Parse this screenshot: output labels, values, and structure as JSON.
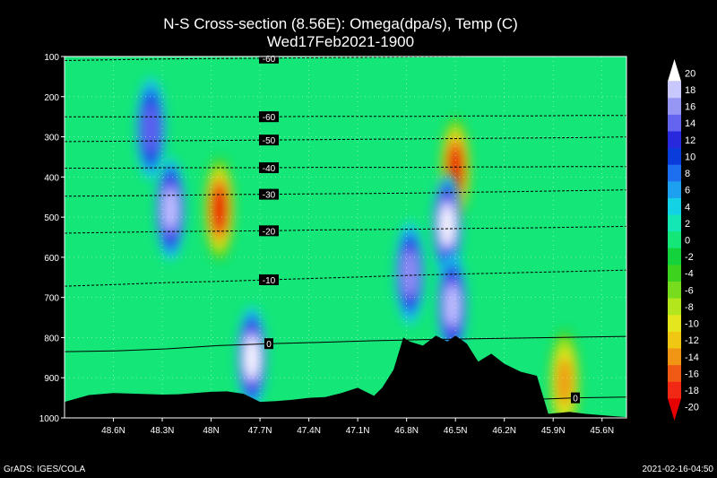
{
  "title_line1": "N-S Cross-section (8.56E): Omega(dpa/s), Temp (C)",
  "title_line2": "Wed17Feb2021-1900",
  "footer_left": "GrADS: IGES/COLA",
  "footer_right": "2021-02-16-04:50",
  "chart_data": {
    "type": "heatmap",
    "title": "N-S Cross-section (8.56E): Omega(dpa/s), Temp (C)",
    "subtitle": "Wed17Feb2021-1900",
    "x_axis": {
      "ticks": [
        "48.6N",
        "48.3N",
        "48N",
        "47.7N",
        "47.4N",
        "47.1N",
        "46.8N",
        "46.5N",
        "46.2N",
        "45.9N",
        "45.6N"
      ],
      "lat_range": [
        48.9,
        45.45
      ]
    },
    "y_axis": {
      "ticks": [
        100,
        200,
        300,
        400,
        500,
        600,
        700,
        800,
        900,
        1000
      ],
      "range": [
        100,
        1000
      ],
      "inverted": true
    },
    "grid": true,
    "colorbar": {
      "levels": [
        20,
        18,
        16,
        14,
        12,
        10,
        8,
        6,
        4,
        2,
        0,
        -2,
        -4,
        -6,
        -8,
        -10,
        -12,
        -14,
        -16,
        -18,
        -20
      ],
      "colors": [
        "#ffffff",
        "#c8c8ff",
        "#9696f5",
        "#6464f0",
        "#2828dc",
        "#0a3cdc",
        "#1e6ef0",
        "#1ea0f0",
        "#14d2e6",
        "#14e6b4",
        "#14e678",
        "#14d23c",
        "#3cd21e",
        "#78dc1e",
        "#b4e61e",
        "#e6e61e",
        "#f0c814",
        "#f09614",
        "#f05a14",
        "#f02814",
        "#e60000"
      ]
    },
    "temperature_contours": [
      {
        "value": -60,
        "label": "-60",
        "pressure": [
          110,
          108,
          106,
          105,
          104,
          103,
          102,
          101,
          100,
          100,
          100,
          100
        ]
      },
      {
        "value": -60,
        "label": "-60",
        "pressure": [
          250,
          250,
          250,
          250,
          250,
          249,
          249,
          249,
          248,
          248,
          247,
          247
        ]
      },
      {
        "value": -50,
        "label": "-50",
        "pressure": [
          312,
          311,
          310,
          309,
          308,
          307,
          306,
          305,
          304,
          303,
          302,
          300
        ]
      },
      {
        "value": -40,
        "label": "-40",
        "pressure": [
          378,
          378,
          377,
          377,
          377,
          376,
          376,
          376,
          375,
          375,
          374,
          374
        ]
      },
      {
        "value": -30,
        "label": "-30",
        "pressure": [
          448,
          447,
          446,
          444,
          443,
          442,
          441,
          440,
          438,
          436,
          434,
          432
        ]
      },
      {
        "value": -20,
        "label": "-20",
        "pressure": [
          540,
          538,
          536,
          535,
          534,
          532,
          531,
          530,
          528,
          527,
          525,
          523
        ]
      },
      {
        "value": -10,
        "label": "-10",
        "pressure": [
          672,
          668,
          663,
          660,
          656,
          652,
          648,
          644,
          641,
          638,
          635,
          632
        ]
      },
      {
        "value": 0,
        "label": "0",
        "pressure": [
          835,
          833,
          828,
          820,
          815,
          812,
          808,
          805,
          803,
          801,
          799,
          797
        ]
      },
      {
        "value": 0,
        "label": "0",
        "pressure": [
          null,
          null,
          null,
          null,
          null,
          null,
          null,
          null,
          null,
          955,
          950,
          948
        ]
      }
    ],
    "terrain_surface_pressure": [
      [
        48.9,
        960
      ],
      [
        48.75,
        943
      ],
      [
        48.6,
        938
      ],
      [
        48.45,
        940
      ],
      [
        48.3,
        942
      ],
      [
        48.2,
        941
      ],
      [
        48.1,
        938
      ],
      [
        48.0,
        935
      ],
      [
        47.9,
        934
      ],
      [
        47.8,
        940
      ],
      [
        47.7,
        960
      ],
      [
        47.6,
        958
      ],
      [
        47.5,
        955
      ],
      [
        47.4,
        950
      ],
      [
        47.3,
        948
      ],
      [
        47.2,
        938
      ],
      [
        47.1,
        925
      ],
      [
        47.0,
        945
      ],
      [
        46.95,
        925
      ],
      [
        46.88,
        880
      ],
      [
        46.82,
        800
      ],
      [
        46.78,
        810
      ],
      [
        46.7,
        820
      ],
      [
        46.62,
        795
      ],
      [
        46.55,
        810
      ],
      [
        46.5,
        795
      ],
      [
        46.43,
        815
      ],
      [
        46.36,
        860
      ],
      [
        46.28,
        840
      ],
      [
        46.2,
        865
      ],
      [
        46.1,
        885
      ],
      [
        46.0,
        895
      ],
      [
        45.93,
        990
      ],
      [
        45.8,
        985
      ],
      [
        45.7,
        990
      ],
      [
        45.55,
        995
      ],
      [
        45.45,
        998
      ]
    ],
    "omega_features": [
      {
        "lat": 48.37,
        "p": 280,
        "value": 14
      },
      {
        "lat": 48.25,
        "p": 480,
        "value": 18
      },
      {
        "lat": 47.95,
        "p": 480,
        "value": -20
      },
      {
        "lat": 47.75,
        "p": 850,
        "value": 20
      },
      {
        "lat": 46.78,
        "p": 640,
        "value": 16
      },
      {
        "lat": 46.5,
        "p": 380,
        "value": -20
      },
      {
        "lat": 46.55,
        "p": 520,
        "value": 20
      },
      {
        "lat": 46.52,
        "p": 720,
        "value": 18
      },
      {
        "lat": 45.83,
        "p": 910,
        "value": -14
      }
    ]
  }
}
